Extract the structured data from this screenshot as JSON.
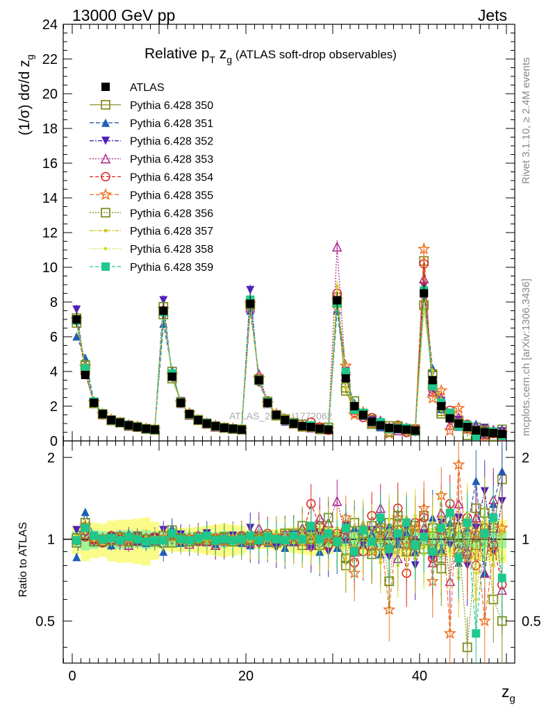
{
  "header": {
    "left": "13000 GeV pp",
    "right": "Jets"
  },
  "side_labels": {
    "rivet": "Rivet 3.1.10, ≥ 2.4M events",
    "mcplots": "mcplots.cern.ch [arXiv:1306.3436]"
  },
  "title": {
    "main_pre": "Relative p",
    "main_sub": "T",
    "main_mid": " z",
    "main_sub2": "g",
    "main_post": " (ATLAS soft-drop observables)"
  },
  "watermark": "ATLAS_2019_I1772062",
  "y_label_top": "(1/σ) dσ/d z",
  "y_label_top_sub": "g",
  "y_label_bottom": "Ratio to ATLAS",
  "x_label": "z",
  "x_label_sub": "g",
  "chart_data": {
    "type": "scatter",
    "xlabel": "z_g",
    "ylabel": "(1/σ) dσ/d z_g",
    "xlim": [
      -1,
      51
    ],
    "ylim": [
      0,
      24
    ],
    "ratio_ylim": [
      0.35,
      2.3
    ],
    "top_ticks": [
      "0",
      "2",
      "4",
      "6",
      "8",
      "10",
      "12",
      "14",
      "16",
      "18",
      "20",
      "22",
      "24"
    ],
    "x_ticks": [
      "0",
      "20",
      "40"
    ],
    "ratio_ticks": [
      "0.5",
      "1",
      "2"
    ],
    "legend": [
      {
        "name": "ATLAS",
        "color": "#000000",
        "marker": "square-filled",
        "dash": "none"
      },
      {
        "name": "Pythia 6.428 350",
        "color": "#8c8c24",
        "marker": "square-open",
        "dash": "solid"
      },
      {
        "name": "Pythia 6.428 351",
        "color": "#1f5fb4",
        "marker": "triangle-up",
        "dash": "6,3"
      },
      {
        "name": "Pythia 6.428 352",
        "color": "#5020b8",
        "marker": "triangle-down",
        "dash": "6,2,2,2"
      },
      {
        "name": "Pythia 6.428 353",
        "color": "#b0208c",
        "marker": "triangle-up-open",
        "dash": "2,2"
      },
      {
        "name": "Pythia 6.428 354",
        "color": "#d8201e",
        "marker": "circle-open",
        "dash": "5,3"
      },
      {
        "name": "Pythia 6.428 355",
        "color": "#ee7020",
        "marker": "star",
        "dash": "6,3"
      },
      {
        "name": "Pythia 6.428 356",
        "color": "#7a8e1c",
        "marker": "square-open",
        "dash": "2,2"
      },
      {
        "name": "Pythia 6.428 357",
        "color": "#d2c41c",
        "marker": "dot",
        "dash": "6,2,2,2"
      },
      {
        "name": "Pythia 6.428 358",
        "color": "#cfe02a",
        "marker": "dot",
        "dash": "2,2"
      },
      {
        "name": "Pythia 6.428 359",
        "color": "#1ec88c",
        "marker": "square-filled",
        "dash": "5,3"
      }
    ],
    "data": {
      "x": [
        0.5,
        1.5,
        2.5,
        3.5,
        4.5,
        5.5,
        6.5,
        7.5,
        8.5,
        9.5,
        10.5,
        11.5,
        12.5,
        13.5,
        14.5,
        15.5,
        16.5,
        17.5,
        18.5,
        19.5,
        20.5,
        21.5,
        22.5,
        23.5,
        24.5,
        25.5,
        26.5,
        27.5,
        28.5,
        29.5,
        30.5,
        31.5,
        32.5,
        33.5,
        34.5,
        35.5,
        36.5,
        37.5,
        38.5,
        39.5,
        40.5,
        41.5,
        42.5,
        43.5,
        44.5,
        45.5,
        46.5,
        47.5,
        48.5,
        49.5
      ],
      "y": [
        7.0,
        3.8,
        2.2,
        1.55,
        1.2,
        1.05,
        0.9,
        0.8,
        0.7,
        0.65,
        7.5,
        3.7,
        2.2,
        1.55,
        1.2,
        1.0,
        0.85,
        0.75,
        0.7,
        0.65,
        7.9,
        3.5,
        2.2,
        1.5,
        1.2,
        1.0,
        0.85,
        0.8,
        0.7,
        0.65,
        8.1,
        3.6,
        2.0,
        1.5,
        1.1,
        0.9,
        0.75,
        0.7,
        0.65,
        0.6,
        8.5,
        3.5,
        2.0,
        1.3,
        1.0,
        0.8,
        0.6,
        0.5,
        0.45,
        0.4
      ],
      "band_inner": [
        0.07,
        0.09,
        0.08,
        0.07,
        0.07,
        0.08,
        0.08,
        0.07,
        0.08,
        0.07,
        0.05,
        0.06,
        0.06,
        0.06,
        0.05,
        0.06,
        0.06,
        0.07,
        0.06,
        0.06,
        0.05,
        0.05,
        0.05,
        0.05,
        0.06,
        0.06,
        0.06,
        0.07,
        0.06,
        0.06,
        0.05,
        0.06,
        0.06,
        0.06,
        0.06,
        0.07,
        0.07,
        0.07,
        0.07,
        0.07,
        0.05,
        0.06,
        0.06,
        0.06,
        0.07,
        0.07,
        0.07,
        0.07,
        0.07,
        0.07
      ],
      "band_outer": [
        0.12,
        0.17,
        0.15,
        0.14,
        0.17,
        0.18,
        0.18,
        0.19,
        0.2,
        0.16,
        0.09,
        0.1,
        0.1,
        0.1,
        0.11,
        0.12,
        0.13,
        0.14,
        0.13,
        0.12,
        0.08,
        0.08,
        0.08,
        0.09,
        0.1,
        0.11,
        0.12,
        0.13,
        0.13,
        0.12,
        0.08,
        0.09,
        0.1,
        0.12,
        0.12,
        0.13,
        0.13,
        0.14,
        0.15,
        0.14,
        0.08,
        0.1,
        0.12,
        0.14,
        0.15,
        0.16,
        0.16,
        0.17,
        0.17,
        0.18
      ]
    },
    "ratios": [
      [
        0.97,
        1.1,
        1.0,
        0.98,
        1.0,
        1.02,
        0.99,
        1.0,
        0.98,
        1.01,
        0.97,
        1.08,
        1.0,
        0.98,
        1.02,
        0.99,
        1.0,
        1.01,
        0.98,
        1.0,
        1.0,
        1.02,
        0.99,
        1.0,
        1.03,
        1.05,
        0.95,
        1.08,
        1.1,
        1.0,
        1.02,
        0.8,
        0.9,
        1.05,
        1.12,
        0.95,
        1.15,
        1.08,
        0.9,
        1.12,
        1.22,
        0.92,
        0.85,
        1.05,
        1.18,
        0.88,
        1.3,
        1.05,
        1.1,
        1.66
      ],
      [
        0.86,
        1.26,
        1.02,
        1.02,
        0.95,
        1.0,
        1.05,
        0.98,
        0.97,
        1.03,
        0.9,
        1.1,
        0.97,
        1.03,
        0.98,
        1.02,
        0.96,
        0.99,
        1.01,
        0.97,
        0.95,
        1.05,
        0.97,
        1.05,
        0.93,
        0.98,
        1.03,
        1.1,
        0.9,
        1.07,
        0.93,
        1.0,
        1.1,
        0.96,
        1.05,
        0.88,
        1.12,
        0.96,
        1.06,
        0.9,
        1.02,
        1.2,
        0.92,
        1.15,
        0.82,
        1.1,
        1.64,
        0.75,
        1.35,
        1.78
      ],
      [
        1.08,
        1.05,
        0.97,
        1.0,
        1.02,
        0.96,
        1.01,
        1.03,
        0.98,
        1.01,
        1.08,
        0.98,
        1.04,
        0.99,
        0.97,
        1.05,
        1.0,
        0.96,
        1.03,
        1.0,
        1.1,
        0.95,
        1.02,
        0.93,
        0.98,
        1.04,
        1.0,
        0.92,
        1.05,
        0.9,
        1.0,
        1.12,
        0.88,
        0.95,
        1.08,
        1.15,
        0.86,
        1.0,
        1.1,
        0.8,
        1.05,
        0.85,
        1.15,
        0.95,
        1.2,
        0.8,
        1.1,
        1.5,
        0.9,
        1.38
      ],
      [
        1.0,
        1.08,
        0.98,
        1.01,
        1.0,
        1.03,
        0.95,
        1.01,
        1.02,
        0.99,
        1.0,
        1.05,
        1.02,
        0.96,
        1.04,
        0.98,
        0.95,
        1.02,
        1.0,
        1.03,
        0.97,
        1.1,
        1.03,
        1.02,
        1.05,
        0.98,
        1.1,
        0.95,
        1.2,
        1.15,
        1.38,
        1.03,
        0.9,
        1.12,
        0.95,
        1.3,
        1.05,
        0.85,
        1.18,
        1.0,
        1.1,
        0.82,
        1.25,
        0.7,
        1.35,
        0.9,
        1.2,
        0.75,
        1.4,
        0.65
      ],
      [
        0.99,
        1.02,
        1.0,
        0.97,
        1.03,
        1.0,
        1.02,
        0.98,
        1.0,
        1.02,
        1.0,
        1.02,
        0.99,
        1.0,
        0.98,
        1.02,
        1.01,
        0.99,
        1.0,
        1.03,
        1.02,
        0.98,
        1.05,
        1.0,
        0.98,
        1.01,
        1.02,
        1.35,
        1.12,
        0.95,
        1.05,
        1.08,
        0.82,
        0.9,
        1.22,
        1.08,
        0.92,
        1.3,
        0.75,
        1.15,
        1.2,
        0.85,
        1.08,
        1.35,
        0.9,
        1.2,
        0.8,
        1.1,
        0.95,
        0.68
      ],
      [
        1.0,
        1.12,
        1.01,
        0.99,
        1.01,
        0.98,
        1.0,
        1.02,
        0.99,
        1.01,
        1.01,
        1.03,
        1.0,
        1.02,
        0.99,
        1.0,
        1.02,
        0.98,
        1.01,
        0.99,
        1.0,
        1.03,
        0.98,
        1.03,
        1.0,
        1.02,
        0.98,
        1.0,
        1.05,
        1.02,
        1.0,
        1.2,
        0.75,
        1.1,
        0.9,
        1.05,
        0.55,
        1.2,
        0.95,
        1.1,
        1.3,
        0.7,
        1.45,
        0.45,
        1.88,
        0.85,
        1.05,
        0.5,
        0.9,
        1.1
      ],
      [
        1.01,
        1.15,
        0.98,
        1.0,
        0.99,
        1.01,
        0.98,
        1.02,
        1.0,
        0.98,
        1.03,
        0.97,
        1.01,
        0.98,
        1.0,
        1.01,
        0.99,
        1.02,
        0.98,
        1.01,
        0.99,
        1.0,
        1.03,
        0.97,
        1.05,
        1.0,
        1.12,
        1.0,
        0.95,
        1.2,
        0.98,
        0.85,
        1.15,
        1.02,
        0.88,
        1.1,
        0.7,
        1.22,
        1.05,
        0.95,
        0.92,
        1.1,
        0.78,
        1.18,
        1.02,
        0.4,
        0.95,
        1.25,
        0.6,
        0.5
      ],
      [
        0.98,
        1.1,
        0.99,
        1.01,
        1.0,
        0.99,
        1.01,
        0.98,
        1.02,
        1.0,
        0.98,
        1.04,
        0.97,
        1.01,
        1.02,
        0.98,
        1.0,
        0.99,
        1.02,
        0.98,
        1.01,
        0.98,
        1.0,
        1.05,
        0.96,
        1.02,
        0.95,
        1.05,
        0.92,
        1.1,
        1.1,
        0.85,
        0.95,
        1.15,
        1.02,
        0.82,
        1.08,
        0.9,
        1.2,
        0.85,
        0.95,
        1.15,
        0.88,
        1.1,
        0.72,
        1.2,
        0.6,
        1.3,
        0.8,
        1.05
      ],
      [
        1.02,
        1.06,
        1.01,
        0.99,
        0.98,
        1.01,
        1.0,
        0.99,
        1.01,
        1.02,
        1.02,
        0.98,
        1.01,
        1.02,
        0.98,
        1.0,
        0.98,
        1.01,
        1.0,
        1.02,
        0.98,
        1.02,
        0.99,
        0.98,
        1.02,
        0.97,
        1.05,
        0.98,
        1.08,
        0.95,
        1.05,
        0.95,
        1.05,
        0.92,
        1.1,
        0.98,
        1.18,
        0.8,
        1.0,
        1.22,
        0.88,
        1.05,
        1.2,
        0.9,
        1.05,
        1.25,
        0.75,
        0.95,
        1.15,
        0.85
      ],
      [
        0.99,
        1.1,
        1.03,
        1.0,
        1.01,
        0.99,
        1.02,
        1.0,
        0.98,
        0.99,
        0.99,
        1.05,
        1.0,
        0.99,
        1.01,
        1.03,
        0.99,
        1.0,
        0.99,
        1.0,
        1.03,
        0.99,
        1.02,
        1.0,
        0.99,
        1.03,
        1.0,
        1.12,
        1.0,
        1.05,
        0.98,
        1.1,
        0.9,
        1.08,
        0.98,
        1.2,
        0.92,
        1.05,
        1.15,
        0.95,
        1.02,
        0.9,
        1.1,
        1.25,
        0.85,
        1.15,
        0.45,
        1.05,
        1.2,
        0.72
      ]
    ]
  }
}
